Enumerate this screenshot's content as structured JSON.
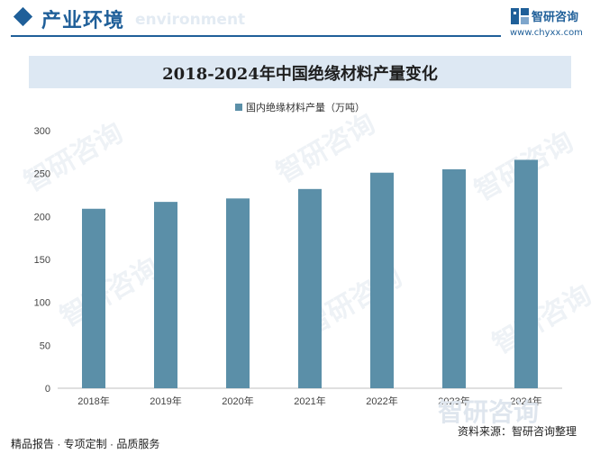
{
  "header": {
    "section_title": "产业环境",
    "section_sub": "environment",
    "brand_name": "智研咨询",
    "brand_url": "www.chyxx.com"
  },
  "chart_data": {
    "type": "bar",
    "title": "2018-2024年中国绝缘材料产量变化",
    "categories": [
      "2018年",
      "2019年",
      "2020年",
      "2021年",
      "2022年",
      "2023年",
      "2024年"
    ],
    "series": [
      {
        "name": "国内绝缘材料产量（万吨）",
        "values": [
          209,
          217,
          221,
          232,
          251,
          255,
          266
        ]
      }
    ],
    "ylim": [
      0,
      300
    ],
    "yticks": [
      0,
      50,
      100,
      150,
      200,
      250,
      300
    ],
    "grid": false,
    "legend": "top",
    "color": "#5b8fa8"
  },
  "footer": {
    "tagline": "精品报告 · 专项定制 · 品质服务",
    "source": "资料来源：智研咨询整理",
    "watermark": "智研咨询"
  }
}
